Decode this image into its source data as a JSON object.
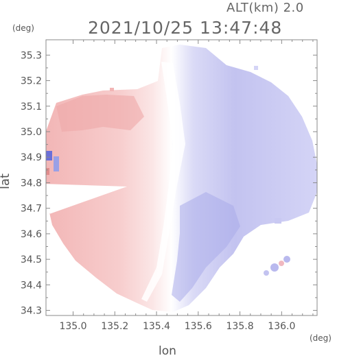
{
  "header": {
    "altitude": "ALT(km) 2.0",
    "timestamp": "2021/10/25 13:47:48"
  },
  "axes": {
    "y_unit": "(deg)",
    "x_unit": "(deg)",
    "y_title": "lat",
    "x_title": "lon"
  },
  "chart_data": {
    "type": "heatmap",
    "xlabel": "lon",
    "ylabel": "lat",
    "xlim": [
      134.87,
      136.17
    ],
    "ylim": [
      34.28,
      35.36
    ],
    "x_ticks": [
      "135.0",
      "135.2",
      "135.4",
      "135.6",
      "135.8",
      "136.0"
    ],
    "x_tick_values": [
      135.0,
      135.2,
      135.4,
      135.6,
      135.8,
      136.0
    ],
    "y_ticks": [
      "34.3",
      "34.4",
      "34.5",
      "34.6",
      "34.7",
      "34.8",
      "34.9",
      "35.0",
      "35.1",
      "35.2",
      "35.3"
    ],
    "y_tick_values": [
      34.3,
      34.4,
      34.5,
      34.6,
      34.7,
      34.8,
      34.9,
      35.0,
      35.1,
      35.2,
      35.3
    ],
    "colors": {
      "positive": "#f3b9b9",
      "positive_light": "#fbe1e1",
      "negative": "#c9c9f2",
      "negative_strong": "#aeb0ec",
      "axis": "#8a8a8a"
    }
  }
}
